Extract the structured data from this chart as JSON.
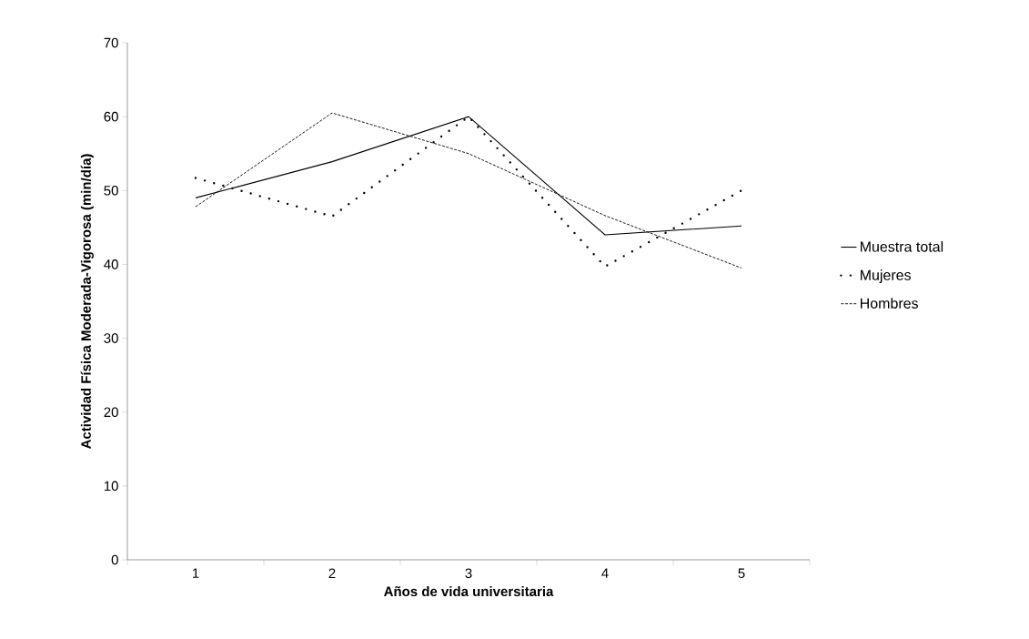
{
  "chart_data": {
    "type": "line",
    "xlabel": "Años de vida universitaria",
    "ylabel": "Actividad Física Moderada-Vigorosa (min/día)",
    "categories": [
      "1",
      "2",
      "3",
      "4",
      "5"
    ],
    "series": [
      {
        "name": "Muestra total",
        "color": "#000000",
        "line_style": "solid",
        "values": [
          49,
          53.9,
          60,
          44,
          45.2
        ]
      },
      {
        "name": "Mujeres",
        "color": "#000000",
        "line_style": "dotted",
        "values": [
          51.7,
          46.5,
          60,
          39.7,
          50
        ]
      },
      {
        "name": "Hombres",
        "color": "#000000",
        "line_style": "dashed",
        "values": [
          47.8,
          60.5,
          55,
          46.6,
          39.5
        ]
      }
    ],
    "ylim": [
      0,
      70
    ],
    "yticks": [
      0,
      10,
      20,
      30,
      40,
      50,
      60,
      70
    ],
    "grid": false,
    "legend": "right",
    "marker": "none"
  }
}
